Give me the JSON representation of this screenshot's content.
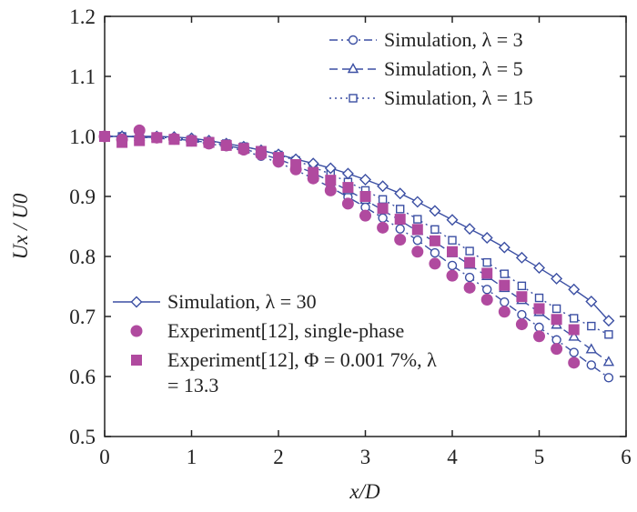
{
  "chart_data": {
    "type": "line",
    "xlabel": "x/D",
    "ylabel": "Ux / U0",
    "xlim": [
      0,
      6
    ],
    "xticks": [
      0,
      1,
      2,
      3,
      4,
      5,
      6
    ],
    "ylim": [
      0.5,
      1.2
    ],
    "yticks": [
      0.5,
      0.6,
      0.7,
      0.8,
      0.9,
      {
        "value": 1,
        "label": "1.0"
      },
      1.1,
      1.2
    ],
    "series": [
      {
        "name": "Simulation, λ = 3",
        "color": "#3b4fa3",
        "marker": "open-circle",
        "linestyle": "dashdot",
        "legend": "upper right",
        "x": [
          0,
          0.2,
          0.4,
          0.6,
          0.8,
          1,
          1.2,
          1.4,
          1.6,
          1.8,
          2,
          2.2,
          2.4,
          2.6,
          2.8,
          3,
          3.2,
          3.4,
          3.6,
          3.8,
          4,
          4.2,
          4.4,
          4.6,
          4.8,
          5,
          5.2,
          5.4,
          5.6,
          5.8
        ],
        "values": [
          1.0,
          1.0,
          0.999,
          0.997,
          0.995,
          0.992,
          0.988,
          0.983,
          0.976,
          0.967,
          0.956,
          0.944,
          0.93,
          0.915,
          0.899,
          0.882,
          0.864,
          0.846,
          0.827,
          0.806,
          0.785,
          0.765,
          0.745,
          0.724,
          0.703,
          0.682,
          0.661,
          0.64,
          0.619,
          0.598
        ]
      },
      {
        "name": "Simulation, λ = 5",
        "color": "#3b4fa3",
        "marker": "open-triangle",
        "linestyle": "dashed",
        "legend": "upper right",
        "x": [
          0,
          0.2,
          0.4,
          0.6,
          0.8,
          1,
          1.2,
          1.4,
          1.6,
          1.8,
          2,
          2.2,
          2.4,
          2.6,
          2.8,
          3,
          3.2,
          3.4,
          3.6,
          3.8,
          4,
          4.2,
          4.4,
          4.6,
          4.8,
          5,
          5.2,
          5.4,
          5.6,
          5.8
        ],
        "values": [
          1.0,
          1.0,
          0.999,
          0.998,
          0.996,
          0.993,
          0.99,
          0.985,
          0.979,
          0.971,
          0.962,
          0.951,
          0.939,
          0.925,
          0.91,
          0.894,
          0.877,
          0.86,
          0.842,
          0.824,
          0.805,
          0.786,
          0.767,
          0.747,
          0.727,
          0.707,
          0.686,
          0.666,
          0.645,
          0.624
        ]
      },
      {
        "name": "Simulation, λ = 15",
        "color": "#3b4fa3",
        "marker": "open-square",
        "linestyle": "dotted",
        "legend": "upper right",
        "x": [
          0,
          0.2,
          0.4,
          0.6,
          0.8,
          1,
          1.2,
          1.4,
          1.6,
          1.8,
          2,
          2.2,
          2.4,
          2.6,
          2.8,
          3,
          3.2,
          3.4,
          3.6,
          3.8,
          4,
          4.2,
          4.4,
          4.6,
          4.8,
          5,
          5.2,
          5.4,
          5.6,
          5.8
        ],
        "values": [
          1.0,
          1.0,
          1.0,
          0.999,
          0.997,
          0.995,
          0.992,
          0.988,
          0.983,
          0.977,
          0.969,
          0.96,
          0.949,
          0.937,
          0.924,
          0.91,
          0.895,
          0.879,
          0.862,
          0.845,
          0.827,
          0.809,
          0.79,
          0.771,
          0.751,
          0.731,
          0.713,
          0.697,
          0.684,
          0.67
        ]
      },
      {
        "name": "Simulation, λ = 30",
        "color": "#3b4fa3",
        "marker": "open-diamond",
        "linestyle": "solid",
        "legend": "lower left",
        "x": [
          0,
          0.2,
          0.4,
          0.6,
          0.8,
          1,
          1.2,
          1.4,
          1.6,
          1.8,
          2,
          2.2,
          2.4,
          2.6,
          2.8,
          3,
          3.2,
          3.4,
          3.6,
          3.8,
          4,
          4.2,
          4.4,
          4.6,
          4.8,
          5,
          5.2,
          5.4,
          5.6,
          5.8
        ],
        "values": [
          1.0,
          1.0,
          1.0,
          1.0,
          0.999,
          0.997,
          0.993,
          0.988,
          0.983,
          0.977,
          0.97,
          0.962,
          0.955,
          0.947,
          0.938,
          0.928,
          0.917,
          0.905,
          0.891,
          0.876,
          0.861,
          0.846,
          0.831,
          0.815,
          0.798,
          0.781,
          0.763,
          0.745,
          0.725,
          0.693
        ]
      },
      {
        "name": "Experiment[12], single-phase",
        "color": "#b04a9f",
        "marker": "filled-circle",
        "linestyle": "none",
        "legend": "lower left",
        "x": [
          0,
          0.2,
          0.4,
          0.6,
          0.8,
          1,
          1.2,
          1.4,
          1.6,
          1.8,
          2,
          2.2,
          2.4,
          2.6,
          2.8,
          3,
          3.2,
          3.4,
          3.6,
          3.8,
          4,
          4.2,
          4.4,
          4.6,
          4.8,
          5,
          5.2,
          5.4
        ],
        "values": [
          1.0,
          0.995,
          1.01,
          0.998,
          0.996,
          0.993,
          0.988,
          0.985,
          0.978,
          0.97,
          0.958,
          0.945,
          0.93,
          0.91,
          0.888,
          0.868,
          0.848,
          0.828,
          0.808,
          0.788,
          0.768,
          0.748,
          0.728,
          0.708,
          0.687,
          0.667,
          0.646,
          0.623
        ]
      },
      {
        "name": "Experiment[12], Φ = 0.001 7%, λ = 13.3",
        "color": "#b04a9f",
        "marker": "filled-square",
        "linestyle": "none",
        "legend": "lower left",
        "x": [
          0,
          0.2,
          0.4,
          0.6,
          0.8,
          1,
          1.2,
          1.4,
          1.6,
          1.8,
          2,
          2.2,
          2.4,
          2.6,
          2.8,
          3,
          3.2,
          3.4,
          3.6,
          3.8,
          4,
          4.2,
          4.4,
          4.6,
          4.8,
          5,
          5.2,
          5.4
        ],
        "values": [
          1.0,
          0.99,
          0.993,
          0.998,
          0.995,
          0.992,
          0.99,
          0.985,
          0.98,
          0.975,
          0.965,
          0.953,
          0.94,
          0.927,
          0.915,
          0.9,
          0.88,
          0.862,
          0.845,
          0.826,
          0.808,
          0.79,
          0.772,
          0.752,
          0.733,
          0.713,
          0.695,
          0.678
        ]
      }
    ]
  }
}
